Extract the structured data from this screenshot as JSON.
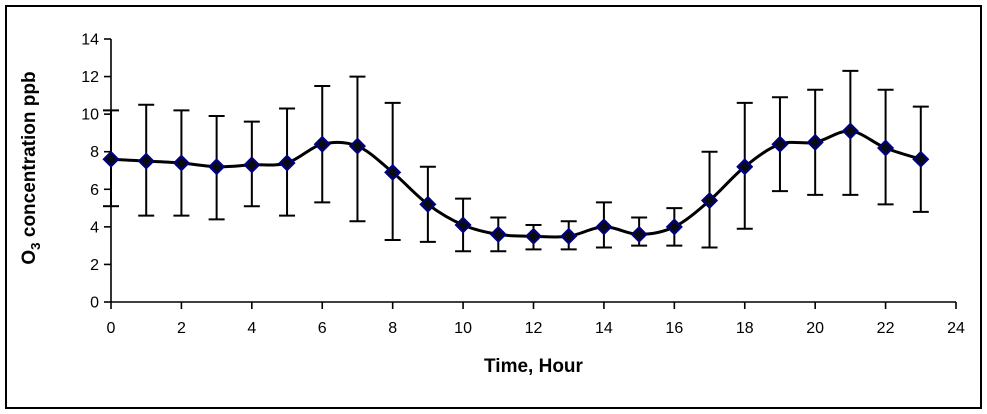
{
  "window": {
    "background": "#ffffff",
    "frame_border_color": "#000000"
  },
  "chart_data": {
    "type": "line",
    "title": "",
    "xlabel": "Time, Hour",
    "ylabel": "O3 concentration ppb",
    "ylabel_parts": {
      "prefix": "O",
      "subscript": "3",
      "rest": " concentration ppb"
    },
    "x": [
      0,
      1,
      2,
      3,
      4,
      5,
      6,
      7,
      8,
      9,
      10,
      11,
      12,
      13,
      14,
      15,
      16,
      17,
      18,
      19,
      20,
      21,
      22,
      23
    ],
    "values": [
      7.6,
      7.5,
      7.4,
      7.2,
      7.3,
      7.4,
      8.4,
      8.3,
      6.9,
      5.2,
      4.1,
      3.6,
      3.5,
      3.5,
      4.0,
      3.6,
      4.0,
      5.4,
      7.2,
      8.4,
      8.5,
      9.1,
      8.2,
      7.6
    ],
    "error_bar_top": [
      10.2,
      10.5,
      10.2,
      9.9,
      9.6,
      10.3,
      11.5,
      12.0,
      10.6,
      7.2,
      5.5,
      4.5,
      4.1,
      4.3,
      5.3,
      4.5,
      5.0,
      8.0,
      10.6,
      10.9,
      11.3,
      12.3,
      11.3,
      10.4
    ],
    "error_bar_bottom": [
      5.1,
      4.6,
      4.6,
      4.4,
      5.1,
      4.6,
      5.3,
      4.3,
      3.3,
      3.2,
      2.7,
      2.7,
      2.8,
      2.8,
      2.9,
      3.0,
      3.0,
      2.9,
      3.9,
      5.9,
      5.7,
      5.7,
      5.2,
      4.8
    ],
    "xlim": [
      0,
      24
    ],
    "ylim": [
      0,
      14
    ],
    "x_ticks": [
      0,
      2,
      4,
      6,
      8,
      10,
      12,
      14,
      16,
      18,
      20,
      22,
      24
    ],
    "y_ticks": [
      0,
      2,
      4,
      6,
      8,
      10,
      12,
      14
    ],
    "grid": false,
    "legend": "none",
    "marker": "diamond",
    "line_style": "smooth",
    "colors": {
      "line": "#000000",
      "marker_fill": "#0a0a12",
      "marker_stroke": "#000080",
      "error_bar": "#000000",
      "axis": "#000000",
      "text": "#000000",
      "background": "#ffffff"
    }
  }
}
